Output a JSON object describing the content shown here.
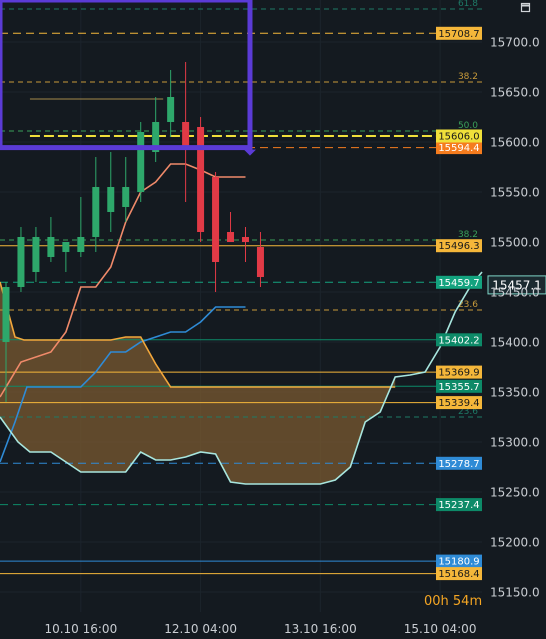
{
  "chart_data": {
    "type": "candlestick",
    "y_axis": {
      "ticks": [
        "15700.0",
        "15650.0",
        "15600.0",
        "15550.0",
        "15500.0",
        "15450.0",
        "15400.0",
        "15350.0",
        "15300.0",
        "15250.0",
        "15200.0",
        "15150.0"
      ],
      "tick_values": [
        15700,
        15650,
        15600,
        15550,
        15500,
        15450,
        15400,
        15350,
        15300,
        15250,
        15200,
        15150
      ],
      "range": [
        15130,
        15742
      ]
    },
    "x_axis": {
      "ticks": [
        "10.10 16:00",
        "12.10 04:00",
        "13.10 16:00",
        "15.10 04:00"
      ],
      "tick_index": [
        5,
        13,
        21,
        29
      ],
      "range_index": [
        -0.4,
        31.8
      ]
    },
    "candles": [
      {
        "i": 0,
        "o": 15400,
        "h": 15460,
        "l": 15340,
        "c": 15455
      },
      {
        "i": 1,
        "o": 15455,
        "h": 15515,
        "l": 15450,
        "c": 15505
      },
      {
        "i": 2,
        "o": 15470,
        "h": 15515,
        "l": 15460,
        "c": 15505
      },
      {
        "i": 3,
        "o": 15485,
        "h": 15525,
        "l": 15480,
        "c": 15505
      },
      {
        "i": 4,
        "o": 15490,
        "h": 15500,
        "l": 15470,
        "c": 15500
      },
      {
        "i": 5,
        "o": 15490,
        "h": 15545,
        "l": 15485,
        "c": 15505
      },
      {
        "i": 6,
        "o": 15505,
        "h": 15585,
        "l": 15490,
        "c": 15555
      },
      {
        "i": 7,
        "o": 15530,
        "h": 15590,
        "l": 15510,
        "c": 15555
      },
      {
        "i": 8,
        "o": 15535,
        "h": 15585,
        "l": 15520,
        "c": 15555
      },
      {
        "i": 9,
        "o": 15550,
        "h": 15620,
        "l": 15540,
        "c": 15610
      },
      {
        "i": 10,
        "o": 15590,
        "h": 15645,
        "l": 15580,
        "c": 15620
      },
      {
        "i": 11,
        "o": 15620,
        "h": 15672,
        "l": 15605,
        "c": 15645
      },
      {
        "i": 12,
        "o": 15620,
        "h": 15680,
        "l": 15540,
        "c": 15595
      },
      {
        "i": 13,
        "o": 15615,
        "h": 15625,
        "l": 15500,
        "c": 15510
      },
      {
        "i": 14,
        "o": 15565,
        "h": 15570,
        "l": 15450,
        "c": 15480
      },
      {
        "i": 15,
        "o": 15510,
        "h": 15530,
        "l": 15500,
        "c": 15500
      },
      {
        "i": 16,
        "o": 15505,
        "h": 15515,
        "l": 15480,
        "c": 15500
      },
      {
        "i": 17,
        "o": 15495,
        "h": 15510,
        "l": 15455,
        "c": 15465
      }
    ],
    "series": [
      {
        "key": "tenkan",
        "color": "#f08a6a",
        "points": [
          [
            -0.4,
            15345
          ],
          [
            1,
            15380
          ],
          [
            3,
            15390
          ],
          [
            4,
            15410
          ],
          [
            5,
            15455
          ],
          [
            6,
            15455
          ],
          [
            7,
            15475
          ],
          [
            8,
            15520
          ],
          [
            9,
            15550
          ],
          [
            10,
            15560
          ],
          [
            11,
            15578
          ],
          [
            12,
            15578
          ],
          [
            13,
            15572
          ],
          [
            14,
            15565
          ],
          [
            15,
            15565
          ],
          [
            16,
            15565
          ]
        ]
      },
      {
        "key": "kijun",
        "color": "#2f8bd6",
        "points": [
          [
            -0.4,
            15280
          ],
          [
            0.6,
            15320
          ],
          [
            1.4,
            15355
          ],
          [
            4,
            15355
          ],
          [
            5,
            15355
          ],
          [
            6,
            15370
          ],
          [
            7,
            15390
          ],
          [
            8,
            15390
          ],
          [
            9,
            15400
          ],
          [
            10,
            15405
          ],
          [
            11,
            15410
          ],
          [
            12,
            15410
          ],
          [
            13,
            15420
          ],
          [
            14,
            15435
          ],
          [
            15,
            15435
          ],
          [
            16,
            15435
          ]
        ]
      },
      {
        "key": "span_a",
        "color": "#f2a73b",
        "points": [
          [
            -0.4,
            15460
          ],
          [
            0.6,
            15405
          ],
          [
            1.2,
            15402
          ],
          [
            2,
            15402
          ],
          [
            3,
            15402
          ],
          [
            4,
            15402
          ],
          [
            5,
            15402
          ],
          [
            6,
            15402
          ],
          [
            7,
            15402
          ],
          [
            8,
            15405
          ],
          [
            9,
            15405
          ],
          [
            10,
            15378
          ],
          [
            11,
            15355
          ],
          [
            12,
            15355
          ],
          [
            13,
            15355
          ],
          [
            14,
            15355
          ],
          [
            15,
            15355
          ],
          [
            16,
            15355
          ],
          [
            17,
            15355
          ],
          [
            18,
            15355
          ],
          [
            19,
            15355
          ],
          [
            20,
            15355
          ],
          [
            21,
            15355
          ],
          [
            22,
            15355
          ],
          [
            23,
            15355
          ],
          [
            24,
            15355
          ],
          [
            25,
            15355
          ],
          [
            26,
            15355
          ]
        ]
      },
      {
        "key": "span_b",
        "color": "#a8e6de",
        "points": [
          [
            -0.4,
            15325
          ],
          [
            0.8,
            15300
          ],
          [
            1.6,
            15290
          ],
          [
            2,
            15290
          ],
          [
            3,
            15290
          ],
          [
            4,
            15280
          ],
          [
            5,
            15270
          ],
          [
            6,
            15270
          ],
          [
            7,
            15270
          ],
          [
            8,
            15270
          ],
          [
            9,
            15290
          ],
          [
            10,
            15282
          ],
          [
            11,
            15282
          ],
          [
            12,
            15285
          ],
          [
            13,
            15290
          ],
          [
            14,
            15288
          ],
          [
            15,
            15260
          ],
          [
            16,
            15258
          ],
          [
            17,
            15258
          ],
          [
            18,
            15258
          ],
          [
            19,
            15258
          ],
          [
            20,
            15258
          ],
          [
            21,
            15258
          ],
          [
            22,
            15262
          ],
          [
            23,
            15275
          ],
          [
            24,
            15320
          ],
          [
            25,
            15330
          ],
          [
            26,
            15365
          ],
          [
            27,
            15367
          ],
          [
            28,
            15370
          ],
          [
            29,
            15395
          ],
          [
            30,
            15430
          ],
          [
            31,
            15455
          ],
          [
            31.8,
            15470
          ]
        ]
      }
    ],
    "price_levels": [
      {
        "value": 15708.7,
        "label": "15708.7",
        "color": "#f5b73a",
        "style": "dash",
        "x_start": -0.4,
        "tag": true
      },
      {
        "value": 15594.4,
        "label": "15594.4",
        "color": "#f57c1e",
        "style": "dash",
        "x_start": -0.4,
        "tag": true
      },
      {
        "value": 15496.3,
        "label": "15496.3",
        "color": "#f5b73a",
        "style": "solid",
        "x_start": -0.4,
        "tag": true
      },
      {
        "value": 15459.7,
        "label": "15459.7",
        "color": "#14a37f",
        "style": "dash",
        "x_start": -0.4,
        "tag": true
      },
      {
        "value": 15402.2,
        "label": "15402.2",
        "color": "#0d8a68",
        "style": "solid",
        "x_start": -0.4,
        "tag": true
      },
      {
        "value": 15369.9,
        "label": "15369.9",
        "color": "#f5b73a",
        "style": "solid",
        "x_start": -0.4,
        "tag": true
      },
      {
        "value": 15355.7,
        "label": "15355.7",
        "color": "#0d8a68",
        "style": "solid",
        "x_start": -0.4,
        "tag": true
      },
      {
        "value": 15339.4,
        "label": "15339.4",
        "color": "#f5b73a",
        "style": "solid",
        "x_start": -0.4,
        "tag": true
      },
      {
        "value": 15278.7,
        "label": "15278.7",
        "color": "#2f8bd6",
        "style": "dash",
        "x_start": -0.4,
        "tag": true
      },
      {
        "value": 15237.4,
        "label": "15237.4",
        "color": "#0d8a68",
        "style": "dash",
        "x_start": -0.4,
        "tag": true
      },
      {
        "value": 15180.9,
        "label": "15180.9",
        "color": "#2f8bd6",
        "style": "solid",
        "x_start": -0.4,
        "tag": true
      },
      {
        "value": 15168.4,
        "label": "15168.4",
        "color": "#f5b73a",
        "style": "solid",
        "x_start": -0.4,
        "tag": true
      },
      {
        "value": 15606.0,
        "label": "15606.0",
        "color": "#f0e03a",
        "style": "dash",
        "x_start": 1.6,
        "tag": true
      },
      {
        "value": 15643.0,
        "label": "",
        "color": "#a58a4a",
        "style": "solid",
        "x_start": 1.6,
        "x_end": 10.5,
        "tag": false
      }
    ],
    "fib_levels": [
      {
        "value": 15733,
        "label": "61.8",
        "color": "#1e7a66"
      },
      {
        "value": 15660,
        "label": "38.2",
        "color": "#c79a3a"
      },
      {
        "value": 15611,
        "label": "50.0",
        "color": "#3aa05a"
      },
      {
        "value": 15502,
        "label": "38.2",
        "color": "#3aa05a"
      },
      {
        "value": 15432,
        "label": "23.6",
        "color": "#c79a3a"
      },
      {
        "value": 15325,
        "label": "23.6",
        "color": "#1e7a66"
      }
    ],
    "zone_rect": {
      "x0": -0.4,
      "x1": 16.3,
      "y0": 15594.4,
      "y1": 15742,
      "color": "#5b3bd6"
    },
    "current_price": {
      "value": 15457.1,
      "label": "15457.1"
    },
    "timer": {
      "label": "00h 54m"
    },
    "colors": {
      "bg": "#141a20",
      "up": "#2ea86b",
      "down": "#e13a46",
      "cloud": "#7a5a30",
      "grid": "#1c242c"
    }
  }
}
